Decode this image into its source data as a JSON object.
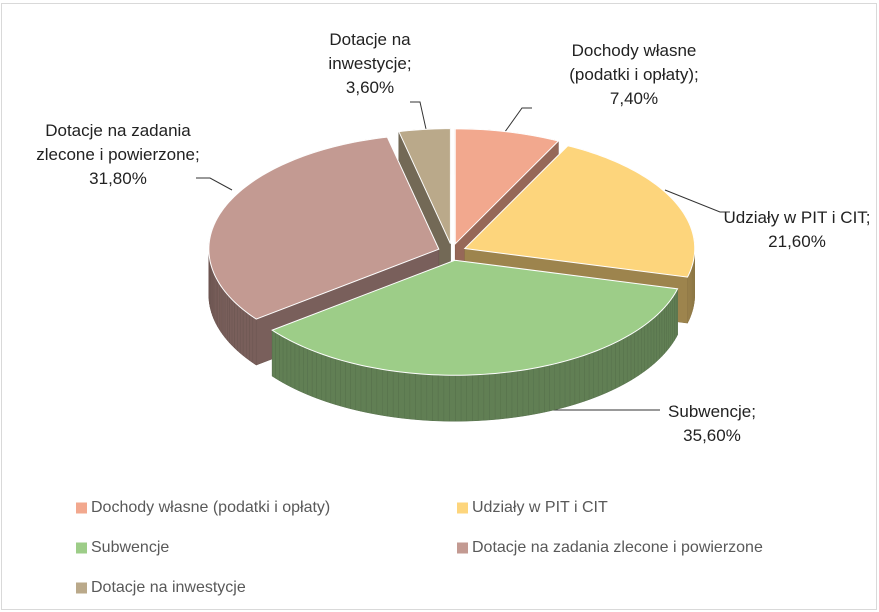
{
  "chart_data": {
    "type": "pie3d",
    "categories": [
      "Dochody własne (podatki i opłaty)",
      "Udziały w PIT i CIT",
      "Subwencje",
      "Dotacje na zadania zlecone i powierzone",
      "Dotacje na inwestycje"
    ],
    "values": [
      7.4,
      21.6,
      35.6,
      31.8,
      3.6
    ],
    "value_labels": [
      "Dochody własne (podatki i opłaty); 7,40%",
      "Udziały w PIT i CIT; 21,60%",
      "Subwencje; 35,60%",
      "Dotacje na zadania zlecone i powierzone; 31,80%",
      "Dotacje na inwestycje; 3,60%"
    ],
    "colors": [
      "#f2a88e",
      "#fdd57c",
      "#9dcd88",
      "#c39a92",
      "#baa98a"
    ],
    "legend": "bottom"
  }
}
